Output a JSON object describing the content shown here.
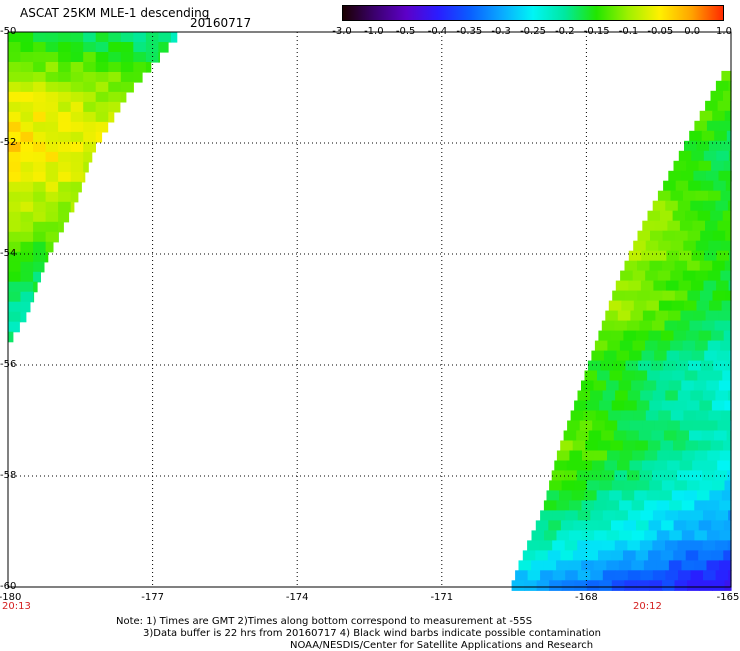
{
  "header": {
    "title": "ASCAT 25KM MLE-1 descending",
    "date": "20160717"
  },
  "colorbar": {
    "labels": [
      "-3.0",
      "-1.0",
      "-0.5",
      "-0.4",
      "-0.35",
      "-0.3",
      "-0.25",
      "-0.2",
      "-0.15",
      "-0.1",
      "-0.05",
      "0.0",
      "1.0"
    ],
    "colors": [
      "#1a0000",
      "#3b006e",
      "#5d00c8",
      "#2a1dff",
      "#0a5dff",
      "#0aa8ff",
      "#00f5f5",
      "#00e8a0",
      "#22e600",
      "#9ef000",
      "#fff000",
      "#ffa400",
      "#ff2a00"
    ]
  },
  "axes": {
    "lat_labels": [
      "-50",
      "-52",
      "-54",
      "-56",
      "-58",
      "-60"
    ],
    "lon_labels": [
      "-180",
      "-177",
      "-174",
      "-171",
      "-168",
      "-165"
    ]
  },
  "times": {
    "left": "20:13",
    "right": "20:12"
  },
  "notes": {
    "line1": "Note: 1) Times are GMT 2)Times along bottom correspond to measurement at -55S",
    "line2": "3)Data buffer is 22 hrs from 20160717 4) Black wind barbs indicate possible contamination",
    "line3": "NOAA/NESDIS/Center for Satellite Applications and Research"
  },
  "map_data": {
    "lat_range": [
      -60,
      -50
    ],
    "lon_range": [
      -180,
      -165
    ],
    "swaths": [
      {
        "name": "west",
        "edge": "right",
        "boundary": [
          [
            -50,
            -176.5
          ],
          [
            -51,
            -177.5
          ],
          [
            -52,
            -178.2
          ],
          [
            -53,
            -178.6
          ],
          [
            -54,
            -179.2
          ],
          [
            -55,
            -179.6
          ],
          [
            -55.4,
            -179.9
          ]
        ],
        "values_by_lat": [
          [
            -50,
            -0.15
          ],
          [
            -51,
            -0.07
          ],
          [
            -52,
            -0.03
          ],
          [
            -53,
            -0.08
          ],
          [
            -54,
            -0.15
          ],
          [
            -55,
            -0.2
          ]
        ]
      },
      {
        "name": "east",
        "edge": "left",
        "boundary": [
          [
            -50.7,
            -165.2
          ],
          [
            -51.5,
            -165.7
          ],
          [
            -52.5,
            -166.3
          ],
          [
            -53.5,
            -166.9
          ],
          [
            -54.5,
            -167.4
          ],
          [
            -55.5,
            -167.8
          ],
          [
            -56.5,
            -168.2
          ],
          [
            -57.5,
            -168.6
          ],
          [
            -58.5,
            -168.9
          ],
          [
            -59.5,
            -169.4
          ],
          [
            -60,
            -169.6
          ]
        ],
        "values_by_lat": [
          [
            -50.7,
            -0.12
          ],
          [
            -52,
            -0.15
          ],
          [
            -53.5,
            -0.1
          ],
          [
            -55,
            -0.1
          ],
          [
            -56,
            -0.15
          ],
          [
            -57.5,
            -0.12
          ],
          [
            -59,
            -0.2
          ],
          [
            -60,
            -0.3
          ]
        ]
      }
    ]
  }
}
